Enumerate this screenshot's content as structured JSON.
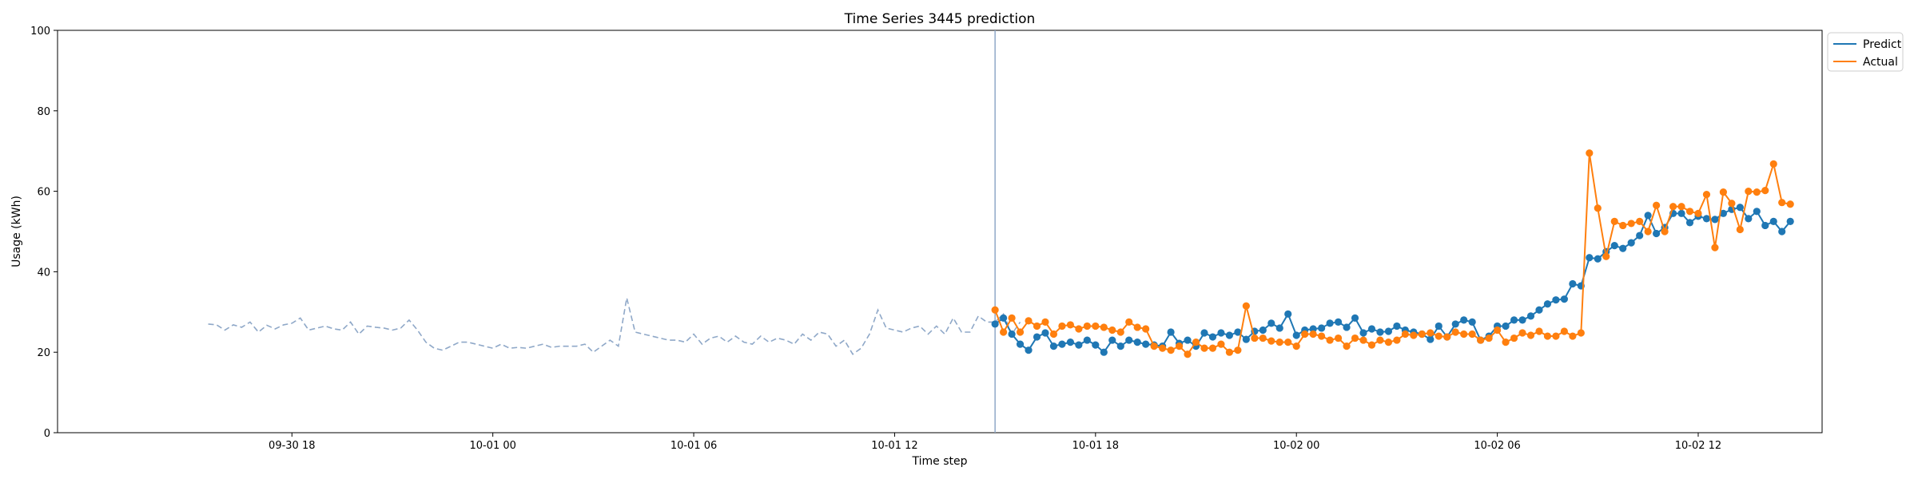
{
  "chart_data": {
    "type": "line",
    "title": "Time Series 3445 prediction",
    "xlabel": "Time step",
    "ylabel": "Usage (kWh)",
    "ylim": [
      0,
      100
    ],
    "yticks": [
      0,
      20,
      40,
      60,
      80,
      100
    ],
    "x_unit": "hours",
    "xlim": [
      -7.0,
      45.7
    ],
    "xticks": [
      {
        "hour": 0,
        "label": "09-30 18"
      },
      {
        "hour": 6,
        "label": "10-01 00"
      },
      {
        "hour": 12,
        "label": "10-01 06"
      },
      {
        "hour": 18,
        "label": "10-01 12"
      },
      {
        "hour": 24,
        "label": "10-01 18"
      },
      {
        "hour": 30,
        "label": "10-02 00"
      },
      {
        "hour": 36,
        "label": "10-02 06"
      },
      {
        "hour": 42,
        "label": "10-02 12"
      }
    ],
    "forecast_start_hour": 21.0,
    "step_hours": 0.25,
    "history": {
      "start_hour": -2.5,
      "color": "#8fa8c8",
      "values": [
        27,
        26.8,
        25.5,
        26.8,
        26.2,
        27.5,
        25,
        26.7,
        25.8,
        26.8,
        27.2,
        28.5,
        25.5,
        26,
        26.5,
        25.8,
        25.5,
        27.5,
        24.5,
        26.5,
        26.2,
        26,
        25.5,
        26,
        28,
        25.5,
        22.5,
        21,
        20.5,
        21.5,
        22.5,
        22.5,
        22,
        21.5,
        21,
        22,
        21,
        21.2,
        21,
        21.5,
        22,
        21.2,
        21.5,
        21.5,
        21.5,
        22,
        20,
        21.5,
        23,
        21.5,
        33.5,
        25,
        24.5,
        24,
        23.5,
        23,
        23,
        22.5,
        24.5,
        22,
        23.5,
        24,
        22.5,
        24,
        22.5,
        22,
        24,
        22.5,
        23.5,
        23,
        22,
        24.5,
        23,
        25,
        24.5,
        21.5,
        23,
        19.5,
        21,
        24.5,
        30.5,
        26,
        25.5,
        25,
        26,
        26.5,
        24.5,
        26.5,
        24.5,
        28.5,
        25,
        25,
        29,
        27.5,
        27.5,
        29.5,
        24.5,
        27.5
      ]
    },
    "series": [
      {
        "name": "Predict",
        "color": "#1f77b4",
        "values": [
          27,
          28.5,
          24.5,
          22,
          20.5,
          23.8,
          24.8,
          21.5,
          22,
          22.5,
          21.8,
          23,
          21.8,
          20,
          23,
          21.5,
          23,
          22.5,
          22,
          21.8,
          21.5,
          25,
          22.2,
          23,
          21.5,
          24.8,
          23.8,
          24.8,
          24.2,
          25,
          23.2,
          25.2,
          25.5,
          27.2,
          26,
          29.5,
          24.2,
          25.5,
          25.8,
          26,
          27.2,
          27.5,
          26.2,
          28.5,
          24.8,
          25.8,
          25,
          25.2,
          26.5,
          25.5,
          25,
          24.5,
          23.2,
          26.5,
          23.8,
          27,
          28,
          27.5,
          23,
          24,
          26.5,
          26.5,
          28,
          28,
          29,
          30.5,
          32,
          33,
          33.2,
          37,
          36.5,
          43.5,
          43.2,
          45,
          46.5,
          45.8,
          47.2,
          49,
          54,
          49.5,
          51,
          54.5,
          54.5,
          52.2,
          53.8,
          53.2,
          53,
          54.5,
          55.5,
          56,
          53.2,
          55,
          51.5,
          52.5,
          50,
          52.5
        ]
      },
      {
        "name": "Actual",
        "color": "#ff7f0e",
        "values": [
          30.5,
          25,
          28.5,
          25,
          27.8,
          26.5,
          27.5,
          24.5,
          26.5,
          26.8,
          25.8,
          26.5,
          26.5,
          26.2,
          25.5,
          25,
          27.5,
          26.2,
          25.8,
          21.5,
          21,
          20.5,
          21.5,
          19.5,
          22.5,
          21,
          21,
          22,
          20,
          20.5,
          31.5,
          23.5,
          23.5,
          22.8,
          22.5,
          22.5,
          21.5,
          24.5,
          24.5,
          24,
          23,
          23.5,
          21.5,
          23.5,
          23,
          21.8,
          23,
          22.5,
          23,
          24.5,
          24.2,
          24.5,
          24.8,
          24,
          23.8,
          25,
          24.5,
          24.5,
          23,
          23.5,
          25.5,
          22.5,
          23.5,
          24.8,
          24.2,
          25.2,
          24,
          24,
          25.2,
          24,
          24.8,
          69.5,
          55.8,
          43.8,
          52.5,
          51.5,
          52,
          52.5,
          50,
          56.5,
          50,
          56.2,
          56.2,
          55,
          54.5,
          59.2,
          46,
          59.8,
          57,
          50.5,
          60,
          59.8,
          60.2,
          66.8,
          57.2,
          56.8
        ]
      }
    ],
    "legend": {
      "placement": "outside-upper-right",
      "entries": [
        "Predict",
        "Actual"
      ]
    },
    "grid": false,
    "forecast_line_color": "#8fa8c8"
  }
}
